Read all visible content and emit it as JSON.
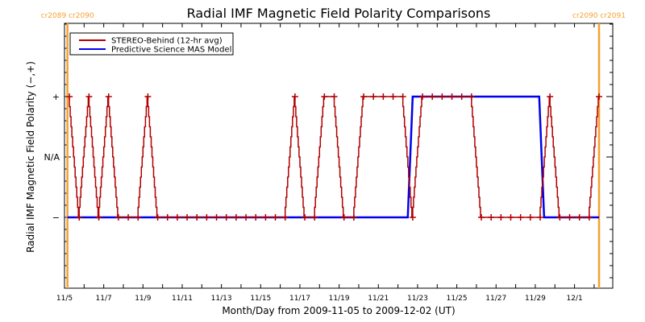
{
  "chart_data": {
    "type": "line",
    "title": "Radial IMF Magnetic Field Polarity Comparisons",
    "xlabel": "Month/Day from 2009-11-05 to 2009-12-02 (UT)",
    "ylabel": "Radial IMF Magnetic Field Polarity (−,+)",
    "x_units": "days since 2009-11-05 00:00 UT",
    "xlim": [
      0,
      28
    ],
    "ylim": [
      -2.2,
      2.2
    ],
    "x_ticks": [
      {
        "value": 0,
        "label": "11/5"
      },
      {
        "value": 2,
        "label": "11/7"
      },
      {
        "value": 4,
        "label": "11/9"
      },
      {
        "value": 6,
        "label": "11/11"
      },
      {
        "value": 8,
        "label": "11/13"
      },
      {
        "value": 10,
        "label": "11/15"
      },
      {
        "value": 12,
        "label": "11/17"
      },
      {
        "value": 14,
        "label": "11/19"
      },
      {
        "value": 16,
        "label": "11/21"
      },
      {
        "value": 18,
        "label": "11/23"
      },
      {
        "value": 20,
        "label": "11/25"
      },
      {
        "value": 22,
        "label": "11/27"
      },
      {
        "value": 24,
        "label": "11/29"
      },
      {
        "value": 26,
        "label": "12/1"
      }
    ],
    "y_ticks": [
      {
        "value": 1,
        "label": "+"
      },
      {
        "value": 0,
        "label": "N/A"
      },
      {
        "value": -1,
        "label": "−"
      }
    ],
    "series": [
      {
        "name": "STEREO-Behind (12-hr avg)",
        "color": "#b00000",
        "x_start": 0.25,
        "x_step": 0.5,
        "marker": "plus",
        "values": [
          1,
          -1,
          1,
          -1,
          1,
          -1,
          -1,
          -1,
          1,
          -1,
          -1,
          -1,
          -1,
          -1,
          -1,
          -1,
          -1,
          -1,
          -1,
          -1,
          -1,
          -1,
          -1,
          1,
          -1,
          -1,
          1,
          1,
          -1,
          -1,
          1,
          1,
          1,
          1,
          1,
          -1,
          1,
          1,
          1,
          1,
          1,
          1,
          -1,
          -1,
          -1,
          -1,
          -1,
          -1,
          -1,
          1,
          -1,
          -1,
          -1,
          -1,
          1
        ]
      },
      {
        "name": "Predictive Science MAS Model",
        "color": "#0000ee",
        "segments": [
          {
            "x": [
              0.15,
              17.5
            ],
            "value": -1
          },
          {
            "x": [
              17.5,
              17.75
            ],
            "value": "transition"
          },
          {
            "x": [
              17.75,
              24.2
            ],
            "value": 1
          },
          {
            "x": [
              24.2,
              24.45
            ],
            "value": "transition"
          },
          {
            "x": [
              24.45,
              27.25
            ],
            "value": -1
          }
        ]
      }
    ],
    "carrington_markers": [
      {
        "x": 0.15,
        "label": "cr2089 cr2090",
        "color": "#f5a030"
      },
      {
        "x": 27.25,
        "label": "cr2090 cr2091",
        "color": "#f5a030"
      }
    ],
    "legend": "top-left",
    "grid": false
  }
}
